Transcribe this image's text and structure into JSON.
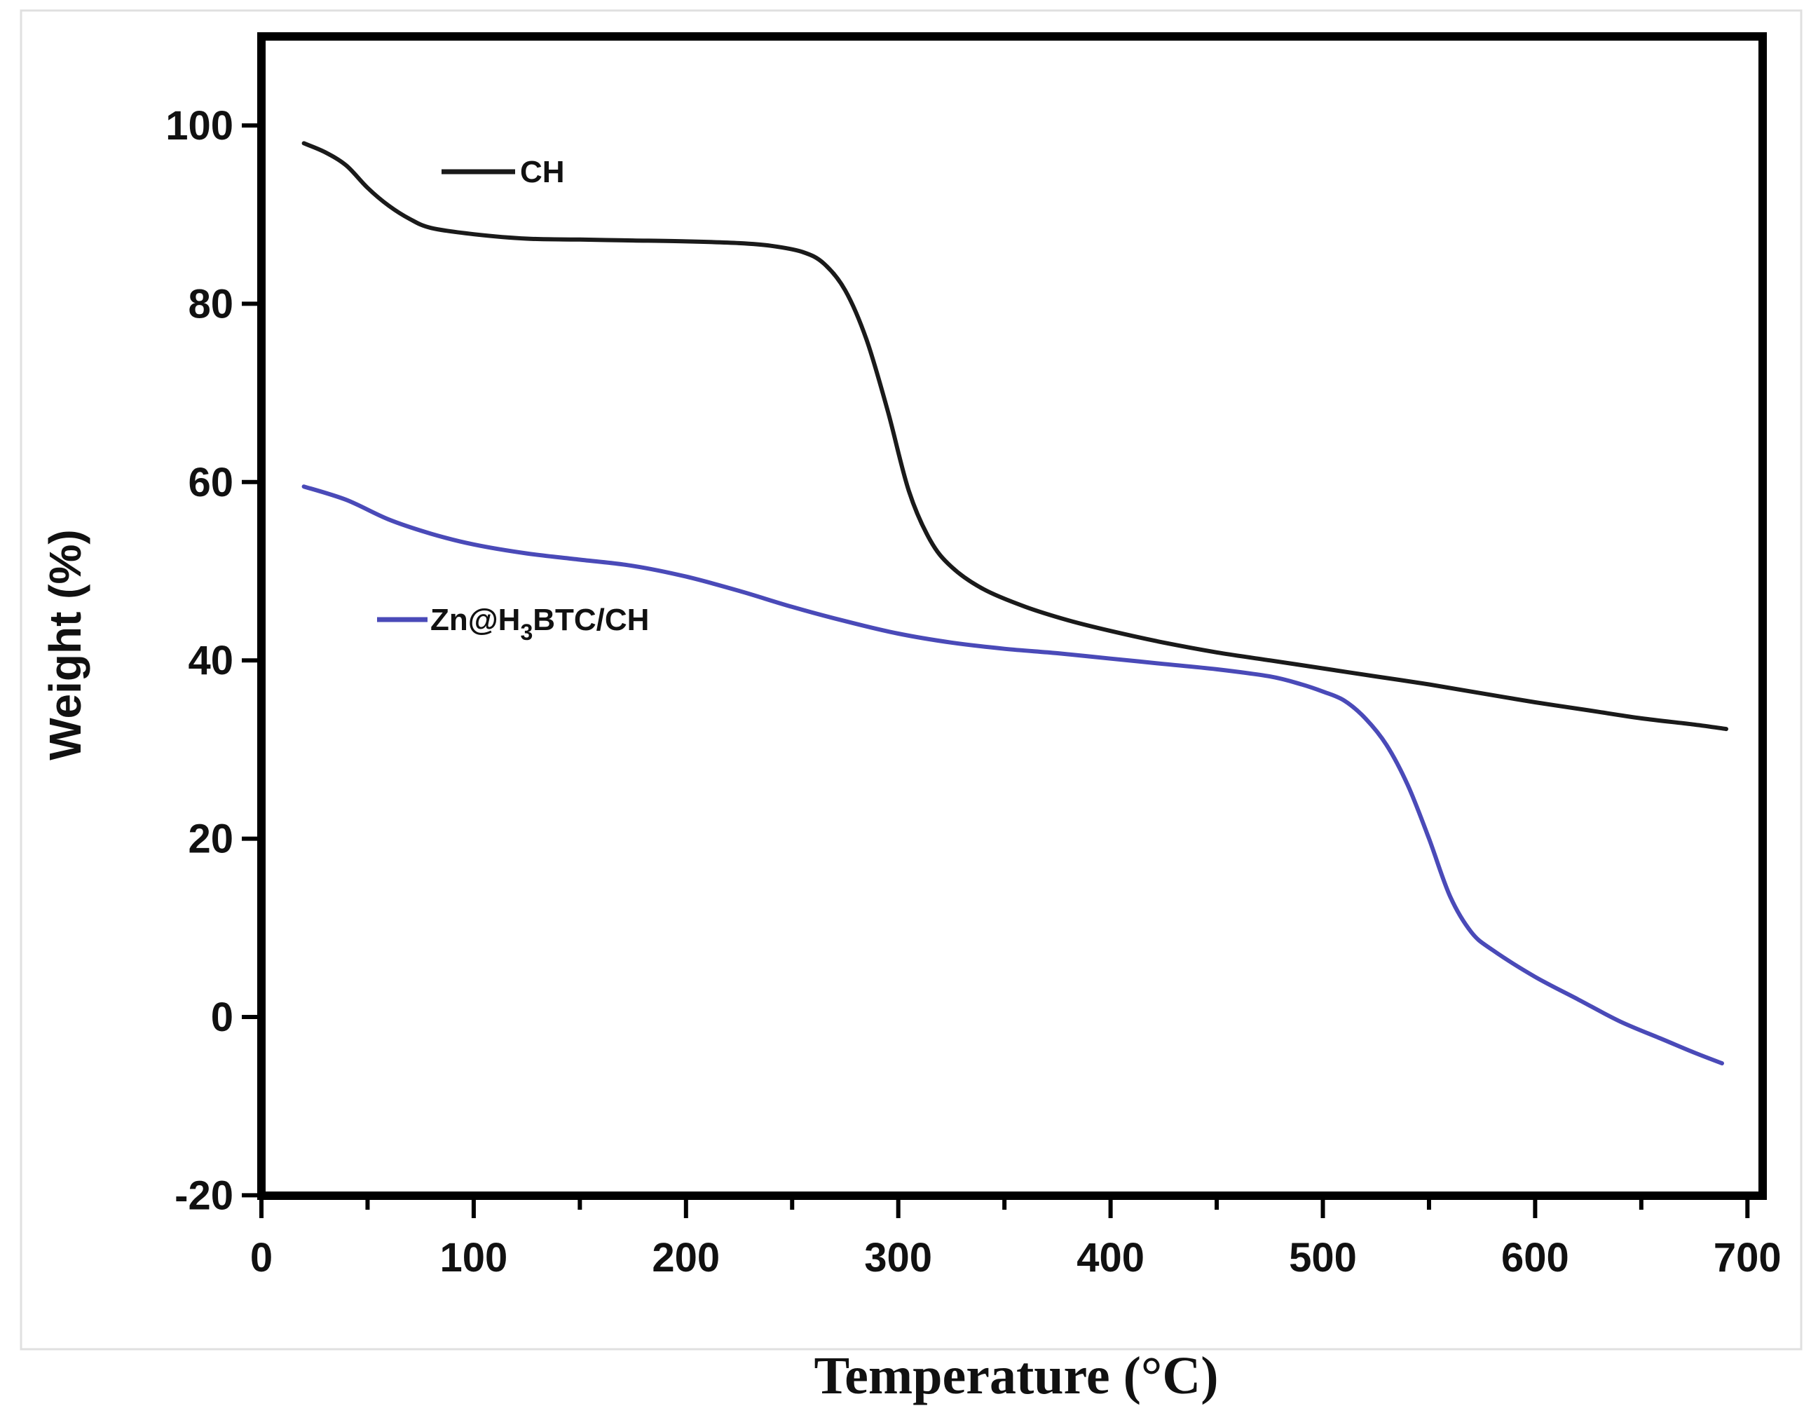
{
  "chart_data": {
    "type": "line",
    "title": "",
    "xlabel": "Temperature (°C)",
    "ylabel": "Weight (%)",
    "xlim": [
      0,
      700
    ],
    "ylim": [
      -20,
      110
    ],
    "xticks": [
      0,
      100,
      200,
      300,
      400,
      500,
      600,
      700
    ],
    "yticks": [
      -20,
      0,
      20,
      40,
      60,
      80,
      100
    ],
    "x_tick_labels": [
      "0",
      "100",
      "200",
      "300",
      "400",
      "500",
      "600",
      "700"
    ],
    "y_tick_labels": [
      "-20",
      "0",
      "20",
      "40",
      "60",
      "80",
      "100"
    ],
    "grid": false,
    "legend_placement": "inside, upper-left (each label next to its curve)",
    "series": [
      {
        "name": "CH",
        "legend_label": "CH",
        "color": "#1a1a1a",
        "points": [
          [
            20,
            98
          ],
          [
            30,
            97
          ],
          [
            40,
            95.5
          ],
          [
            50,
            93
          ],
          [
            60,
            91
          ],
          [
            70,
            89.5
          ],
          [
            80,
            88.5
          ],
          [
            100,
            87.8
          ],
          [
            125,
            87.3
          ],
          [
            150,
            87.2
          ],
          [
            175,
            87.1
          ],
          [
            200,
            87
          ],
          [
            225,
            86.8
          ],
          [
            240,
            86.5
          ],
          [
            255,
            85.8
          ],
          [
            265,
            84.5
          ],
          [
            275,
            81.5
          ],
          [
            285,
            76
          ],
          [
            295,
            68
          ],
          [
            305,
            59
          ],
          [
            315,
            53.5
          ],
          [
            325,
            50.5
          ],
          [
            340,
            48
          ],
          [
            360,
            46
          ],
          [
            380,
            44.5
          ],
          [
            400,
            43.3
          ],
          [
            425,
            42
          ],
          [
            450,
            40.9
          ],
          [
            475,
            40
          ],
          [
            500,
            39.1
          ],
          [
            525,
            38.2
          ],
          [
            550,
            37.3
          ],
          [
            575,
            36.3
          ],
          [
            600,
            35.3
          ],
          [
            625,
            34.4
          ],
          [
            650,
            33.5
          ],
          [
            675,
            32.8
          ],
          [
            690,
            32.3
          ]
        ]
      },
      {
        "name": "Zn@H3BTC/CH",
        "legend_label": "Zn@H",
        "legend_subscript": "3",
        "legend_suffix": "BTC/CH",
        "color": "#4a4ab8",
        "points": [
          [
            20,
            59.5
          ],
          [
            40,
            58
          ],
          [
            60,
            55.8
          ],
          [
            80,
            54.2
          ],
          [
            100,
            53
          ],
          [
            125,
            52
          ],
          [
            150,
            51.3
          ],
          [
            175,
            50.6
          ],
          [
            200,
            49.4
          ],
          [
            225,
            47.8
          ],
          [
            250,
            46
          ],
          [
            275,
            44.4
          ],
          [
            300,
            43
          ],
          [
            325,
            42
          ],
          [
            350,
            41.3
          ],
          [
            375,
            40.8
          ],
          [
            400,
            40.2
          ],
          [
            425,
            39.6
          ],
          [
            450,
            39
          ],
          [
            475,
            38.2
          ],
          [
            490,
            37.3
          ],
          [
            500,
            36.5
          ],
          [
            510,
            35.5
          ],
          [
            520,
            33.5
          ],
          [
            530,
            30.5
          ],
          [
            540,
            26
          ],
          [
            550,
            20
          ],
          [
            560,
            13.5
          ],
          [
            570,
            9.5
          ],
          [
            580,
            7.5
          ],
          [
            600,
            4.5
          ],
          [
            620,
            2
          ],
          [
            640,
            -0.5
          ],
          [
            660,
            -2.5
          ],
          [
            675,
            -4
          ],
          [
            688,
            -5.2
          ]
        ]
      }
    ]
  }
}
